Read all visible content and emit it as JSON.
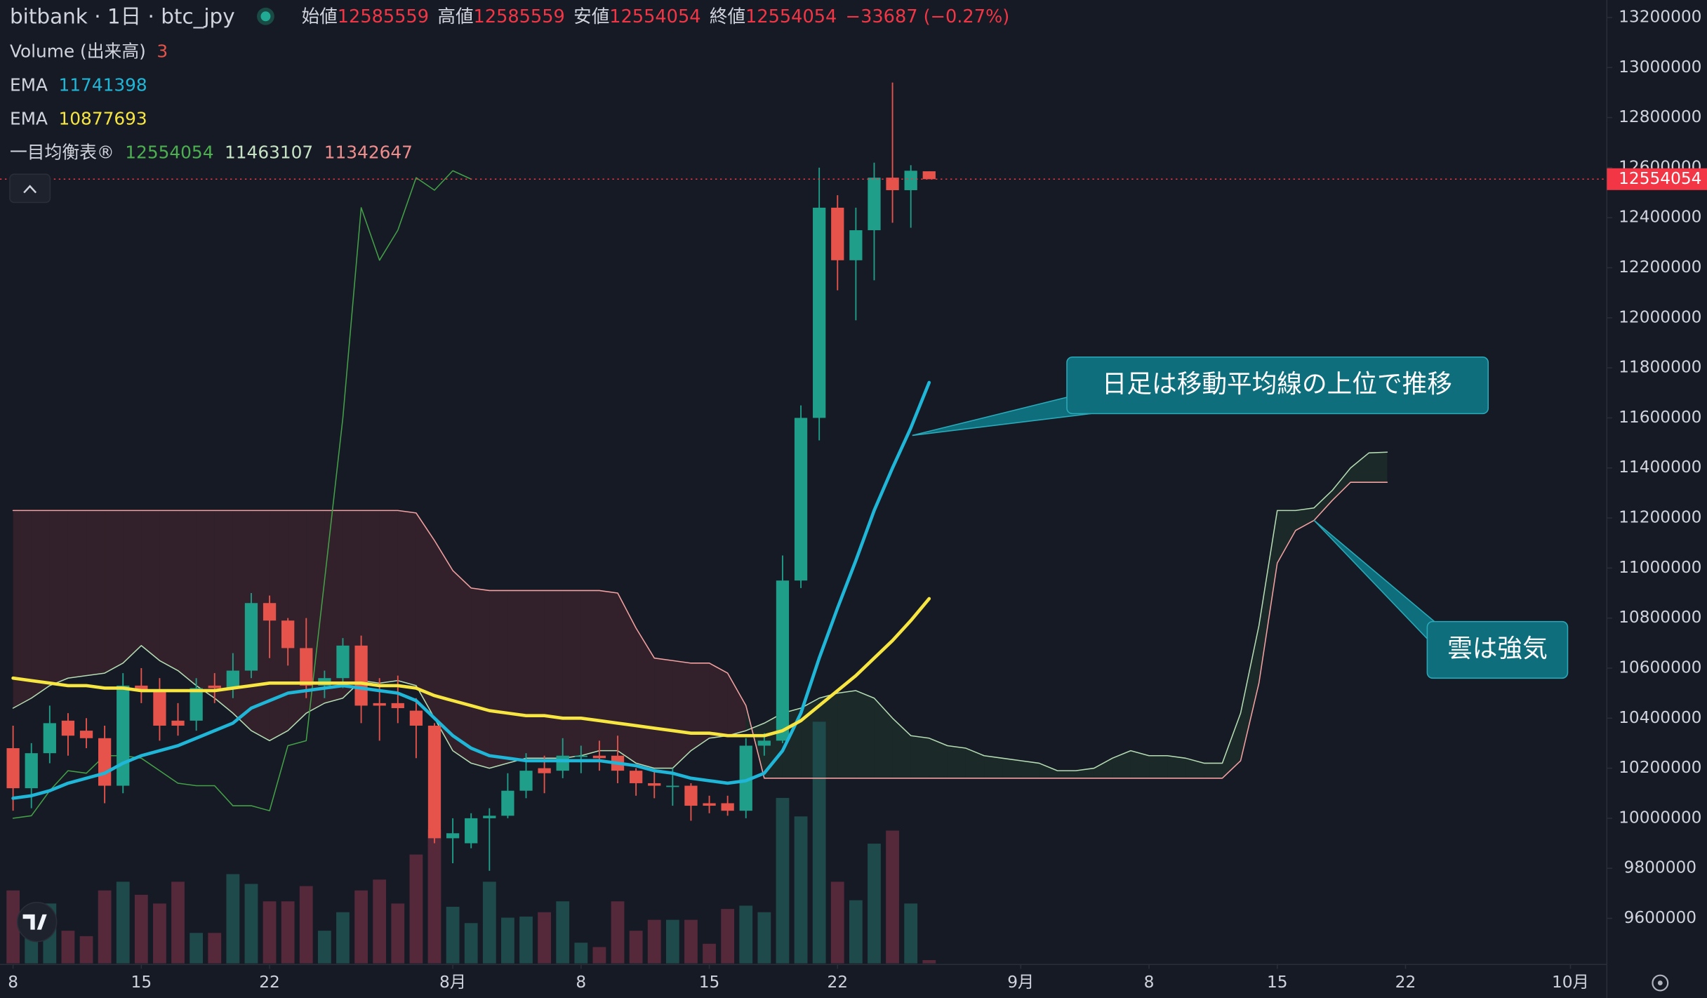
{
  "legend": {
    "symbol": "bitbank · 1日 · btc_jpy",
    "ohlc_labels": [
      "始値",
      "高値",
      "安値",
      "終値"
    ],
    "change": "−33687 (−0.27%)",
    "volume_label": "Volume (出来高)"
  },
  "chart_data": {
    "type": "candlestick",
    "x": [
      "07-08",
      "07-09",
      "07-10",
      "07-11",
      "07-12",
      "07-13",
      "07-14",
      "07-15",
      "07-16",
      "07-17",
      "07-18",
      "07-19",
      "07-20",
      "07-21",
      "07-22",
      "07-23",
      "07-24",
      "07-25",
      "07-26",
      "07-27",
      "07-28",
      "07-29",
      "07-30",
      "07-31",
      "08-01",
      "08-02",
      "08-03",
      "08-04",
      "08-05",
      "08-06",
      "08-07",
      "08-08",
      "08-09",
      "08-10",
      "08-11",
      "08-12",
      "08-13",
      "08-14",
      "08-15",
      "08-16",
      "08-17",
      "08-18",
      "08-19",
      "08-20",
      "08-21",
      "08-22",
      "08-23",
      "08-24",
      "08-25",
      "08-26",
      "08-27"
    ],
    "open": [
      10280000,
      10120000,
      10260000,
      10390000,
      10350000,
      10320000,
      10130000,
      10530000,
      10510000,
      10390000,
      10390000,
      10530000,
      10520000,
      10590000,
      10860000,
      10790000,
      10680000,
      10530000,
      10560000,
      10690000,
      10460000,
      10460000,
      10430000,
      10370000,
      9920000,
      9900000,
      10000000,
      10010000,
      10110000,
      10200000,
      10190000,
      10250000,
      10250000,
      10250000,
      10190000,
      10140000,
      10130000,
      10130000,
      10060000,
      10060000,
      10030000,
      10290000,
      10310000,
      10950000,
      11600000,
      12440000,
      12230000,
      12350000,
      12560000,
      12510000,
      12585559
    ],
    "high": [
      10370000,
      10300000,
      10450000,
      10420000,
      10400000,
      10370000,
      10580000,
      10600000,
      10560000,
      10460000,
      10560000,
      10580000,
      10660000,
      10900000,
      10890000,
      10800000,
      10800000,
      10590000,
      10720000,
      10730000,
      10560000,
      10570000,
      10480000,
      10380000,
      10000000,
      10020000,
      10040000,
      10180000,
      10260000,
      10250000,
      10320000,
      10290000,
      10310000,
      10330000,
      10200000,
      10190000,
      10200000,
      10140000,
      10090000,
      10090000,
      10320000,
      10340000,
      11050000,
      11650000,
      12600000,
      12490000,
      12440000,
      12620000,
      12940000,
      12610000,
      12585559
    ],
    "low": [
      10030000,
      10040000,
      10220000,
      10250000,
      10280000,
      10060000,
      10100000,
      10460000,
      10310000,
      10330000,
      10350000,
      10460000,
      10480000,
      10560000,
      10640000,
      10610000,
      10480000,
      10480000,
      10520000,
      10380000,
      10310000,
      10380000,
      10240000,
      9900000,
      9820000,
      9880000,
      9790000,
      10000000,
      10080000,
      10100000,
      10160000,
      10180000,
      10190000,
      10140000,
      10090000,
      10080000,
      10050000,
      9990000,
      10020000,
      10010000,
      10000000,
      10250000,
      10300000,
      10920000,
      11510000,
      12110000,
      11990000,
      12150000,
      12380000,
      12360000,
      12554054
    ],
    "close": [
      10120000,
      10260000,
      10380000,
      10330000,
      10320000,
      10130000,
      10530000,
      10510000,
      10370000,
      10370000,
      10520000,
      10520000,
      10590000,
      10860000,
      10790000,
      10680000,
      10530000,
      10560000,
      10690000,
      10450000,
      10450000,
      10440000,
      10370000,
      9920000,
      9940000,
      10000000,
      10010000,
      10110000,
      10190000,
      10180000,
      10250000,
      10250000,
      10240000,
      10190000,
      10140000,
      10130000,
      10130000,
      10050000,
      10050000,
      10030000,
      10290000,
      10310000,
      10950000,
      11600000,
      12440000,
      12230000,
      12350000,
      12560000,
      12510000,
      12587741,
      12554054
    ],
    "volume": [
      67,
      50,
      55,
      30,
      25,
      67,
      75,
      63,
      55,
      75,
      28,
      28,
      82,
      73,
      57,
      57,
      71,
      30,
      47,
      67,
      77,
      55,
      100,
      123,
      52,
      37,
      75,
      42,
      43,
      47,
      57,
      19,
      15,
      57,
      30,
      40,
      40,
      40,
      18,
      50,
      53,
      47,
      152,
      135,
      222,
      75,
      58,
      110,
      122,
      55,
      3
    ],
    "up_color": "#1f9e89",
    "down_color": "#e5534b",
    "volume_up_color": "#1e4a4c",
    "volume_down_color": "#55283a",
    "series": [
      {
        "name": "EMA",
        "color": "#1fb6d8",
        "values": [
          10080000,
          10090000,
          10110000,
          10140000,
          10160000,
          10180000,
          10220000,
          10250000,
          10270000,
          10290000,
          10320000,
          10350000,
          10380000,
          10440000,
          10470000,
          10500000,
          10510000,
          10520000,
          10530000,
          10520000,
          10510000,
          10500000,
          10470000,
          10400000,
          10330000,
          10280000,
          10250000,
          10240000,
          10230000,
          10230000,
          10230000,
          10230000,
          10230000,
          10220000,
          10210000,
          10190000,
          10180000,
          10160000,
          10150000,
          10140000,
          10150000,
          10180000,
          10270000,
          10420000,
          10640000,
          10840000,
          11030000,
          11230000,
          11400000,
          11560000,
          11741398
        ]
      },
      {
        "name": "EMA",
        "color": "#f7e541",
        "values": [
          10560000,
          10550000,
          10540000,
          10530000,
          10530000,
          10520000,
          10520000,
          10510000,
          10510000,
          10510000,
          10510000,
          10510000,
          10520000,
          10530000,
          10540000,
          10540000,
          10540000,
          10540000,
          10540000,
          10540000,
          10530000,
          10530000,
          10520000,
          10490000,
          10470000,
          10450000,
          10430000,
          10420000,
          10410000,
          10410000,
          10400000,
          10400000,
          10390000,
          10380000,
          10370000,
          10360000,
          10350000,
          10340000,
          10340000,
          10330000,
          10330000,
          10330000,
          10350000,
          10390000,
          10450000,
          10510000,
          10570000,
          10640000,
          10710000,
          10790000,
          10877693
        ]
      }
    ],
    "ichimoku": {
      "name": "一目均衡表®",
      "x": [
        "07-08",
        "07-09",
        "07-10",
        "07-11",
        "07-12",
        "07-13",
        "07-14",
        "07-15",
        "07-16",
        "07-17",
        "07-18",
        "07-19",
        "07-20",
        "07-21",
        "07-22",
        "07-23",
        "07-24",
        "07-25",
        "07-26",
        "07-27",
        "07-28",
        "07-29",
        "07-30",
        "07-31",
        "08-01",
        "08-02",
        "08-03",
        "08-04",
        "08-05",
        "08-06",
        "08-07",
        "08-08",
        "08-09",
        "08-10",
        "08-11",
        "08-12",
        "08-13",
        "08-14",
        "08-15",
        "08-16",
        "08-17",
        "08-18",
        "08-19",
        "08-20",
        "08-21",
        "08-22",
        "08-23",
        "08-24",
        "08-25",
        "08-26",
        "08-27",
        "08-28",
        "08-29",
        "08-30",
        "08-31",
        "09-01",
        "09-02",
        "09-03",
        "09-04",
        "09-05",
        "09-06",
        "09-07",
        "09-08",
        "09-09",
        "09-10",
        "09-11",
        "09-12",
        "09-13",
        "09-14",
        "09-15",
        "09-16",
        "09-17",
        "09-18",
        "09-19",
        "09-20",
        "09-21"
      ],
      "span_a": {
        "color": "#b5dcb3",
        "legend_color": "#c6e3c4",
        "values": [
          10440000,
          10480000,
          10530000,
          10560000,
          10570000,
          10580000,
          10620000,
          10690000,
          10630000,
          10590000,
          10530000,
          10480000,
          10420000,
          10350000,
          10310000,
          10350000,
          10420000,
          10460000,
          10480000,
          10550000,
          10540000,
          10550000,
          10530000,
          10400000,
          10270000,
          10220000,
          10200000,
          10220000,
          10240000,
          10240000,
          10240000,
          10250000,
          10270000,
          10270000,
          10220000,
          10200000,
          10200000,
          10270000,
          10320000,
          10330000,
          10350000,
          10380000,
          10420000,
          10440000,
          10480000,
          10500000,
          10510000,
          10480000,
          10400000,
          10330000,
          10320000,
          10290000,
          10280000,
          10250000,
          10240000,
          10230000,
          10220000,
          10190000,
          10190000,
          10200000,
          10240000,
          10270000,
          10250000,
          10250000,
          10240000,
          10220000,
          10220000,
          10420000,
          10770000,
          11230000,
          11230000,
          11240000,
          11310000,
          11400000,
          11460000,
          11463107
        ]
      },
      "span_b": {
        "color": "#f4a1a1",
        "legend_color": "#f08e8e",
        "values": [
          11230000,
          11230000,
          11230000,
          11230000,
          11230000,
          11230000,
          11230000,
          11230000,
          11230000,
          11230000,
          11230000,
          11230000,
          11230000,
          11230000,
          11230000,
          11230000,
          11230000,
          11230000,
          11230000,
          11230000,
          11230000,
          11230000,
          11220000,
          11110000,
          10990000,
          10920000,
          10910000,
          10910000,
          10910000,
          10910000,
          10910000,
          10910000,
          10910000,
          10900000,
          10760000,
          10640000,
          10630000,
          10620000,
          10620000,
          10580000,
          10450000,
          10160000,
          10160000,
          10160000,
          10160000,
          10160000,
          10160000,
          10160000,
          10160000,
          10160000,
          10160000,
          10160000,
          10160000,
          10160000,
          10160000,
          10160000,
          10160000,
          10160000,
          10160000,
          10160000,
          10160000,
          10160000,
          10160000,
          10160000,
          10160000,
          10160000,
          10160000,
          10230000,
          10540000,
          11020000,
          11150000,
          11190000,
          11270000,
          11342647,
          11342647,
          11342647
        ]
      },
      "cloud_up_color": "rgba(76,175,80,0.10)",
      "cloud_down_color": "rgba(239,83,80,0.13)",
      "lagging": {
        "color": "#43a047",
        "legend_color": "#4caf50",
        "x": [
          "07-08",
          "07-09",
          "07-10",
          "07-11",
          "07-12",
          "07-13",
          "07-14",
          "07-15",
          "07-16",
          "07-17",
          "07-18",
          "07-19",
          "07-20",
          "07-21",
          "07-22",
          "07-23",
          "07-24",
          "07-25",
          "07-26",
          "07-27",
          "07-28",
          "07-29",
          "07-30",
          "07-31",
          "08-01",
          "08-02"
        ],
        "values": [
          10000000,
          10010000,
          10110000,
          10190000,
          10180000,
          10250000,
          10250000,
          10240000,
          10190000,
          10140000,
          10130000,
          10130000,
          10050000,
          10050000,
          10030000,
          10290000,
          10310000,
          10950000,
          11600000,
          12440000,
          12230000,
          12350000,
          12560000,
          12510000,
          12587741,
          12554054
        ]
      }
    },
    "xlim": [
      "07-07",
      "10-03"
    ],
    "xticks": [
      {
        "value": "07-08",
        "label": "8"
      },
      {
        "value": "07-15",
        "label": "15"
      },
      {
        "value": "07-22",
        "label": "22"
      },
      {
        "value": "08-01",
        "label": "8月"
      },
      {
        "value": "08-08",
        "label": "8"
      },
      {
        "value": "08-15",
        "label": "15"
      },
      {
        "value": "08-22",
        "label": "22"
      },
      {
        "value": "09-01",
        "label": "9月"
      },
      {
        "value": "09-08",
        "label": "8"
      },
      {
        "value": "09-15",
        "label": "15"
      },
      {
        "value": "09-22",
        "label": "22"
      },
      {
        "value": "10-01",
        "label": "10月"
      }
    ],
    "ylim": [
      9420000,
      13270000
    ],
    "yticks": [
      9600000,
      9800000,
      10000000,
      10200000,
      10400000,
      10600000,
      10800000,
      11000000,
      11200000,
      11400000,
      11600000,
      11800000,
      12000000,
      12200000,
      12400000,
      12600000,
      12800000,
      13000000,
      13200000
    ],
    "grid": false,
    "price_line_color": "#f23645",
    "annotations": [
      {
        "text": "日足は移動平均線の上位で推移"
      },
      {
        "text": "雲は強気"
      }
    ]
  }
}
